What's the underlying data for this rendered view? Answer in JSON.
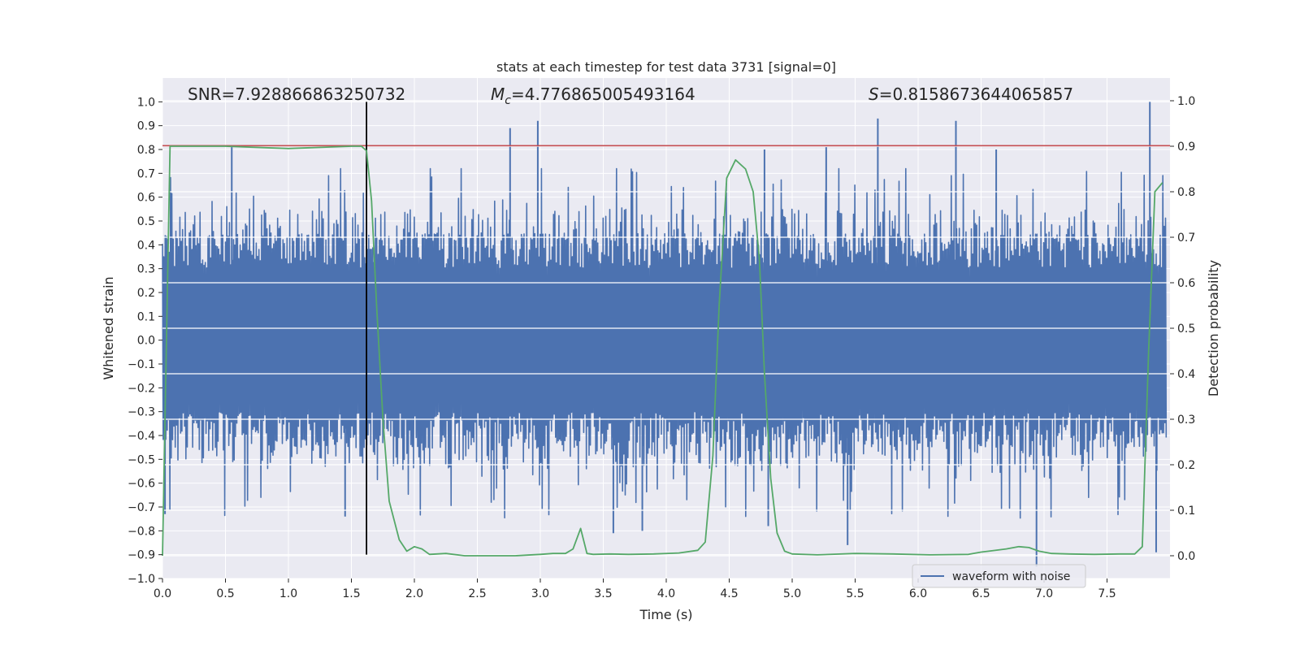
{
  "chart_data": {
    "type": "line",
    "title": "stats at each timestep for test data 3731 [signal=0]",
    "xlabel": "Time (s)",
    "ylabel_left": "Whitened strain",
    "ylabel_right": "Detection probability",
    "xlim": [
      0.0,
      8.0
    ],
    "ylim_left": [
      -1.0,
      1.1
    ],
    "ylim_right": [
      -0.05,
      1.05
    ],
    "x_ticks": [
      "0.0",
      "0.5",
      "1.0",
      "1.5",
      "2.0",
      "2.5",
      "3.0",
      "3.5",
      "4.0",
      "4.5",
      "5.0",
      "5.5",
      "6.0",
      "6.5",
      "7.0",
      "7.5"
    ],
    "y_left_ticks": [
      "−1.0",
      "−0.9",
      "−0.8",
      "−0.7",
      "−0.6",
      "−0.5",
      "−0.4",
      "−0.3",
      "−0.2",
      "−0.1",
      "0.0",
      "0.1",
      "0.2",
      "0.3",
      "0.4",
      "0.5",
      "0.6",
      "0.7",
      "0.8",
      "0.9",
      "1.0"
    ],
    "y_right_ticks": [
      "0.0",
      "0.1",
      "0.2",
      "0.3",
      "0.4",
      "0.5",
      "0.6",
      "0.7",
      "0.8",
      "0.9",
      "1.0"
    ],
    "annotations": {
      "snr": "SNR=7.928866863250732",
      "mc_symbol": "M",
      "mc_subscript": "c",
      "mc_value": "=4.776865005493164",
      "s_symbol": "S",
      "s_value": "=0.8158673644065857"
    },
    "legend": {
      "label": "waveform with noise",
      "position": "lower-right"
    },
    "threshold": {
      "value": 0.8158673644065857,
      "axis": "left",
      "color": "#c44e52"
    },
    "marker_line": {
      "x": 1.62,
      "y_from": -0.9,
      "y_to": 1.0,
      "color": "#000000"
    },
    "waveform": {
      "name": "waveform with noise",
      "color": "#4c72b0",
      "x_start": 0.0,
      "x_end": 7.97,
      "envelope_typical": [
        -0.48,
        0.42
      ],
      "spikes": [
        {
          "x": 0.55,
          "y": 0.81
        },
        {
          "x": 2.76,
          "y": 0.89
        },
        {
          "x": 2.98,
          "y": 0.92
        },
        {
          "x": 4.78,
          "y": 0.8
        },
        {
          "x": 5.27,
          "y": 0.81
        },
        {
          "x": 5.68,
          "y": 0.93
        },
        {
          "x": 6.3,
          "y": 0.92
        },
        {
          "x": 6.62,
          "y": 0.8
        },
        {
          "x": 7.84,
          "y": 1.0
        },
        {
          "x": 1.45,
          "y": -0.74
        },
        {
          "x": 3.58,
          "y": -0.81
        },
        {
          "x": 3.81,
          "y": -0.8
        },
        {
          "x": 4.81,
          "y": -0.78
        },
        {
          "x": 5.44,
          "y": -0.86
        },
        {
          "x": 6.94,
          "y": -0.95
        },
        {
          "x": 7.89,
          "y": -0.89
        },
        {
          "x": 0.02,
          "y": -0.73
        }
      ]
    },
    "probability": {
      "name": "detection probability",
      "color": "#55a868",
      "x": [
        0.0,
        0.06,
        0.2,
        0.5,
        1.0,
        1.5,
        1.58,
        1.62,
        1.66,
        1.7,
        1.75,
        1.8,
        1.88,
        1.94,
        2.0,
        2.06,
        2.12,
        2.25,
        2.4,
        2.6,
        2.8,
        3.0,
        3.1,
        3.2,
        3.26,
        3.32,
        3.37,
        3.42,
        3.55,
        3.7,
        3.9,
        4.1,
        4.25,
        4.31,
        4.37,
        4.42,
        4.48,
        4.55,
        4.63,
        4.69,
        4.74,
        4.78,
        4.83,
        4.88,
        4.94,
        5.0,
        5.2,
        5.5,
        5.8,
        6.1,
        6.4,
        6.5,
        6.56,
        6.7,
        6.8,
        6.88,
        6.96,
        7.06,
        7.2,
        7.4,
        7.6,
        7.72,
        7.78,
        7.83,
        7.88,
        7.94
      ],
      "y": [
        0.0,
        0.9,
        0.9,
        0.9,
        0.895,
        0.9,
        0.9,
        0.89,
        0.78,
        0.55,
        0.3,
        0.12,
        0.035,
        0.01,
        0.02,
        0.015,
        0.003,
        0.005,
        0.0,
        0.0,
        0.0,
        0.003,
        0.005,
        0.005,
        0.015,
        0.06,
        0.005,
        0.003,
        0.004,
        0.003,
        0.004,
        0.006,
        0.012,
        0.03,
        0.22,
        0.55,
        0.83,
        0.87,
        0.85,
        0.8,
        0.65,
        0.4,
        0.17,
        0.05,
        0.01,
        0.004,
        0.002,
        0.005,
        0.004,
        0.002,
        0.003,
        0.008,
        0.01,
        0.015,
        0.02,
        0.018,
        0.01,
        0.005,
        0.004,
        0.003,
        0.004,
        0.004,
        0.02,
        0.45,
        0.8,
        0.82
      ]
    }
  }
}
